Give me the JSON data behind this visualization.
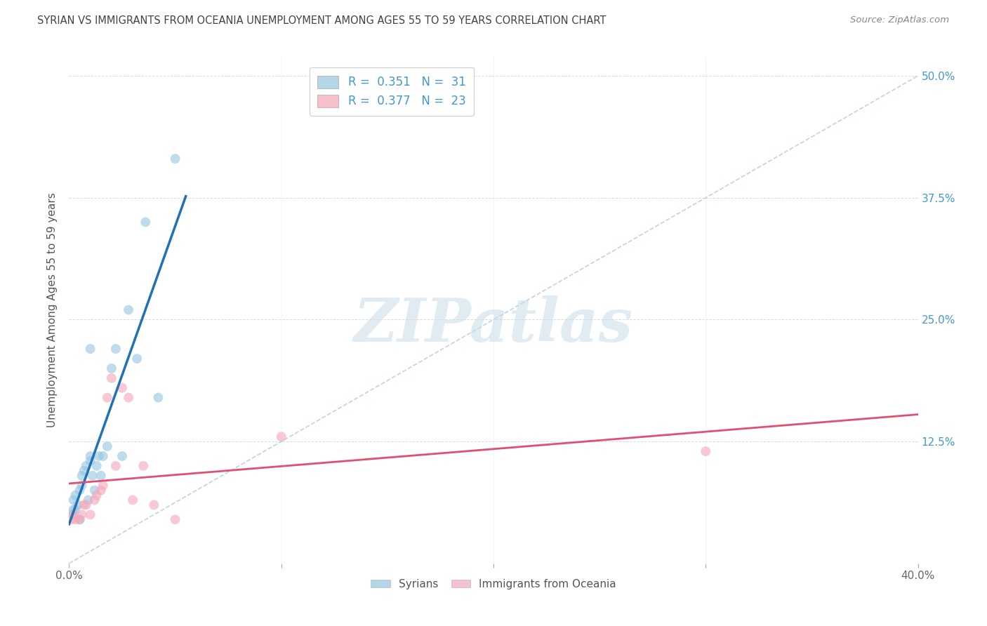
{
  "title": "SYRIAN VS IMMIGRANTS FROM OCEANIA UNEMPLOYMENT AMONG AGES 55 TO 59 YEARS CORRELATION CHART",
  "source": "Source: ZipAtlas.com",
  "ylabel": "Unemployment Among Ages 55 to 59 years",
  "ytick_values": [
    0.0,
    0.125,
    0.25,
    0.375,
    0.5
  ],
  "ytick_labels_right": [
    "",
    "12.5%",
    "25.0%",
    "37.5%",
    "50.0%"
  ],
  "xlim": [
    0.0,
    0.4
  ],
  "ylim": [
    0.0,
    0.52
  ],
  "legend1_R": "0.351",
  "legend1_N": "31",
  "legend2_R": "0.377",
  "legend2_N": "23",
  "syrians_color": "#93c6e0",
  "oceania_color": "#f4a6b8",
  "syrian_line_color": "#2171b5",
  "oceania_line_color": "#e05070",
  "diagonal_color": "#b8cfe0",
  "background_color": "#ffffff",
  "title_color": "#444444",
  "right_axis_color": "#4499cc",
  "watermark_color": "#c8dce8",
  "syrians_x": [
    0.001,
    0.002,
    0.002,
    0.003,
    0.003,
    0.004,
    0.005,
    0.005,
    0.006,
    0.006,
    0.007,
    0.008,
    0.009,
    0.01,
    0.01,
    0.011,
    0.012,
    0.013,
    0.014,
    0.015,
    0.016,
    0.018,
    0.02,
    0.022,
    0.025,
    0.028,
    0.032,
    0.036,
    0.042,
    0.05,
    0.01
  ],
  "syrians_y": [
    0.05,
    0.055,
    0.065,
    0.055,
    0.07,
    0.06,
    0.045,
    0.075,
    0.08,
    0.09,
    0.095,
    0.1,
    0.065,
    0.105,
    0.11,
    0.09,
    0.075,
    0.1,
    0.11,
    0.09,
    0.11,
    0.12,
    0.2,
    0.22,
    0.11,
    0.26,
    0.21,
    0.35,
    0.17,
    0.415,
    0.22
  ],
  "oceania_x": [
    0.001,
    0.002,
    0.003,
    0.005,
    0.006,
    0.007,
    0.008,
    0.01,
    0.012,
    0.013,
    0.015,
    0.016,
    0.018,
    0.02,
    0.022,
    0.025,
    0.028,
    0.03,
    0.035,
    0.04,
    0.05,
    0.1,
    0.3
  ],
  "oceania_y": [
    0.045,
    0.05,
    0.045,
    0.045,
    0.05,
    0.06,
    0.06,
    0.05,
    0.065,
    0.07,
    0.075,
    0.08,
    0.17,
    0.19,
    0.1,
    0.18,
    0.17,
    0.065,
    0.1,
    0.06,
    0.045,
    0.13,
    0.115
  ],
  "marker_size": 100,
  "blue_line_xmax": 0.055,
  "xtick_positions": [
    0.0,
    0.1,
    0.2,
    0.3,
    0.4
  ],
  "xtick_labels": [
    "0.0%",
    "",
    "",
    "",
    "40.0%"
  ],
  "grid_color": "#cccccc",
  "grid_alpha": 0.7
}
